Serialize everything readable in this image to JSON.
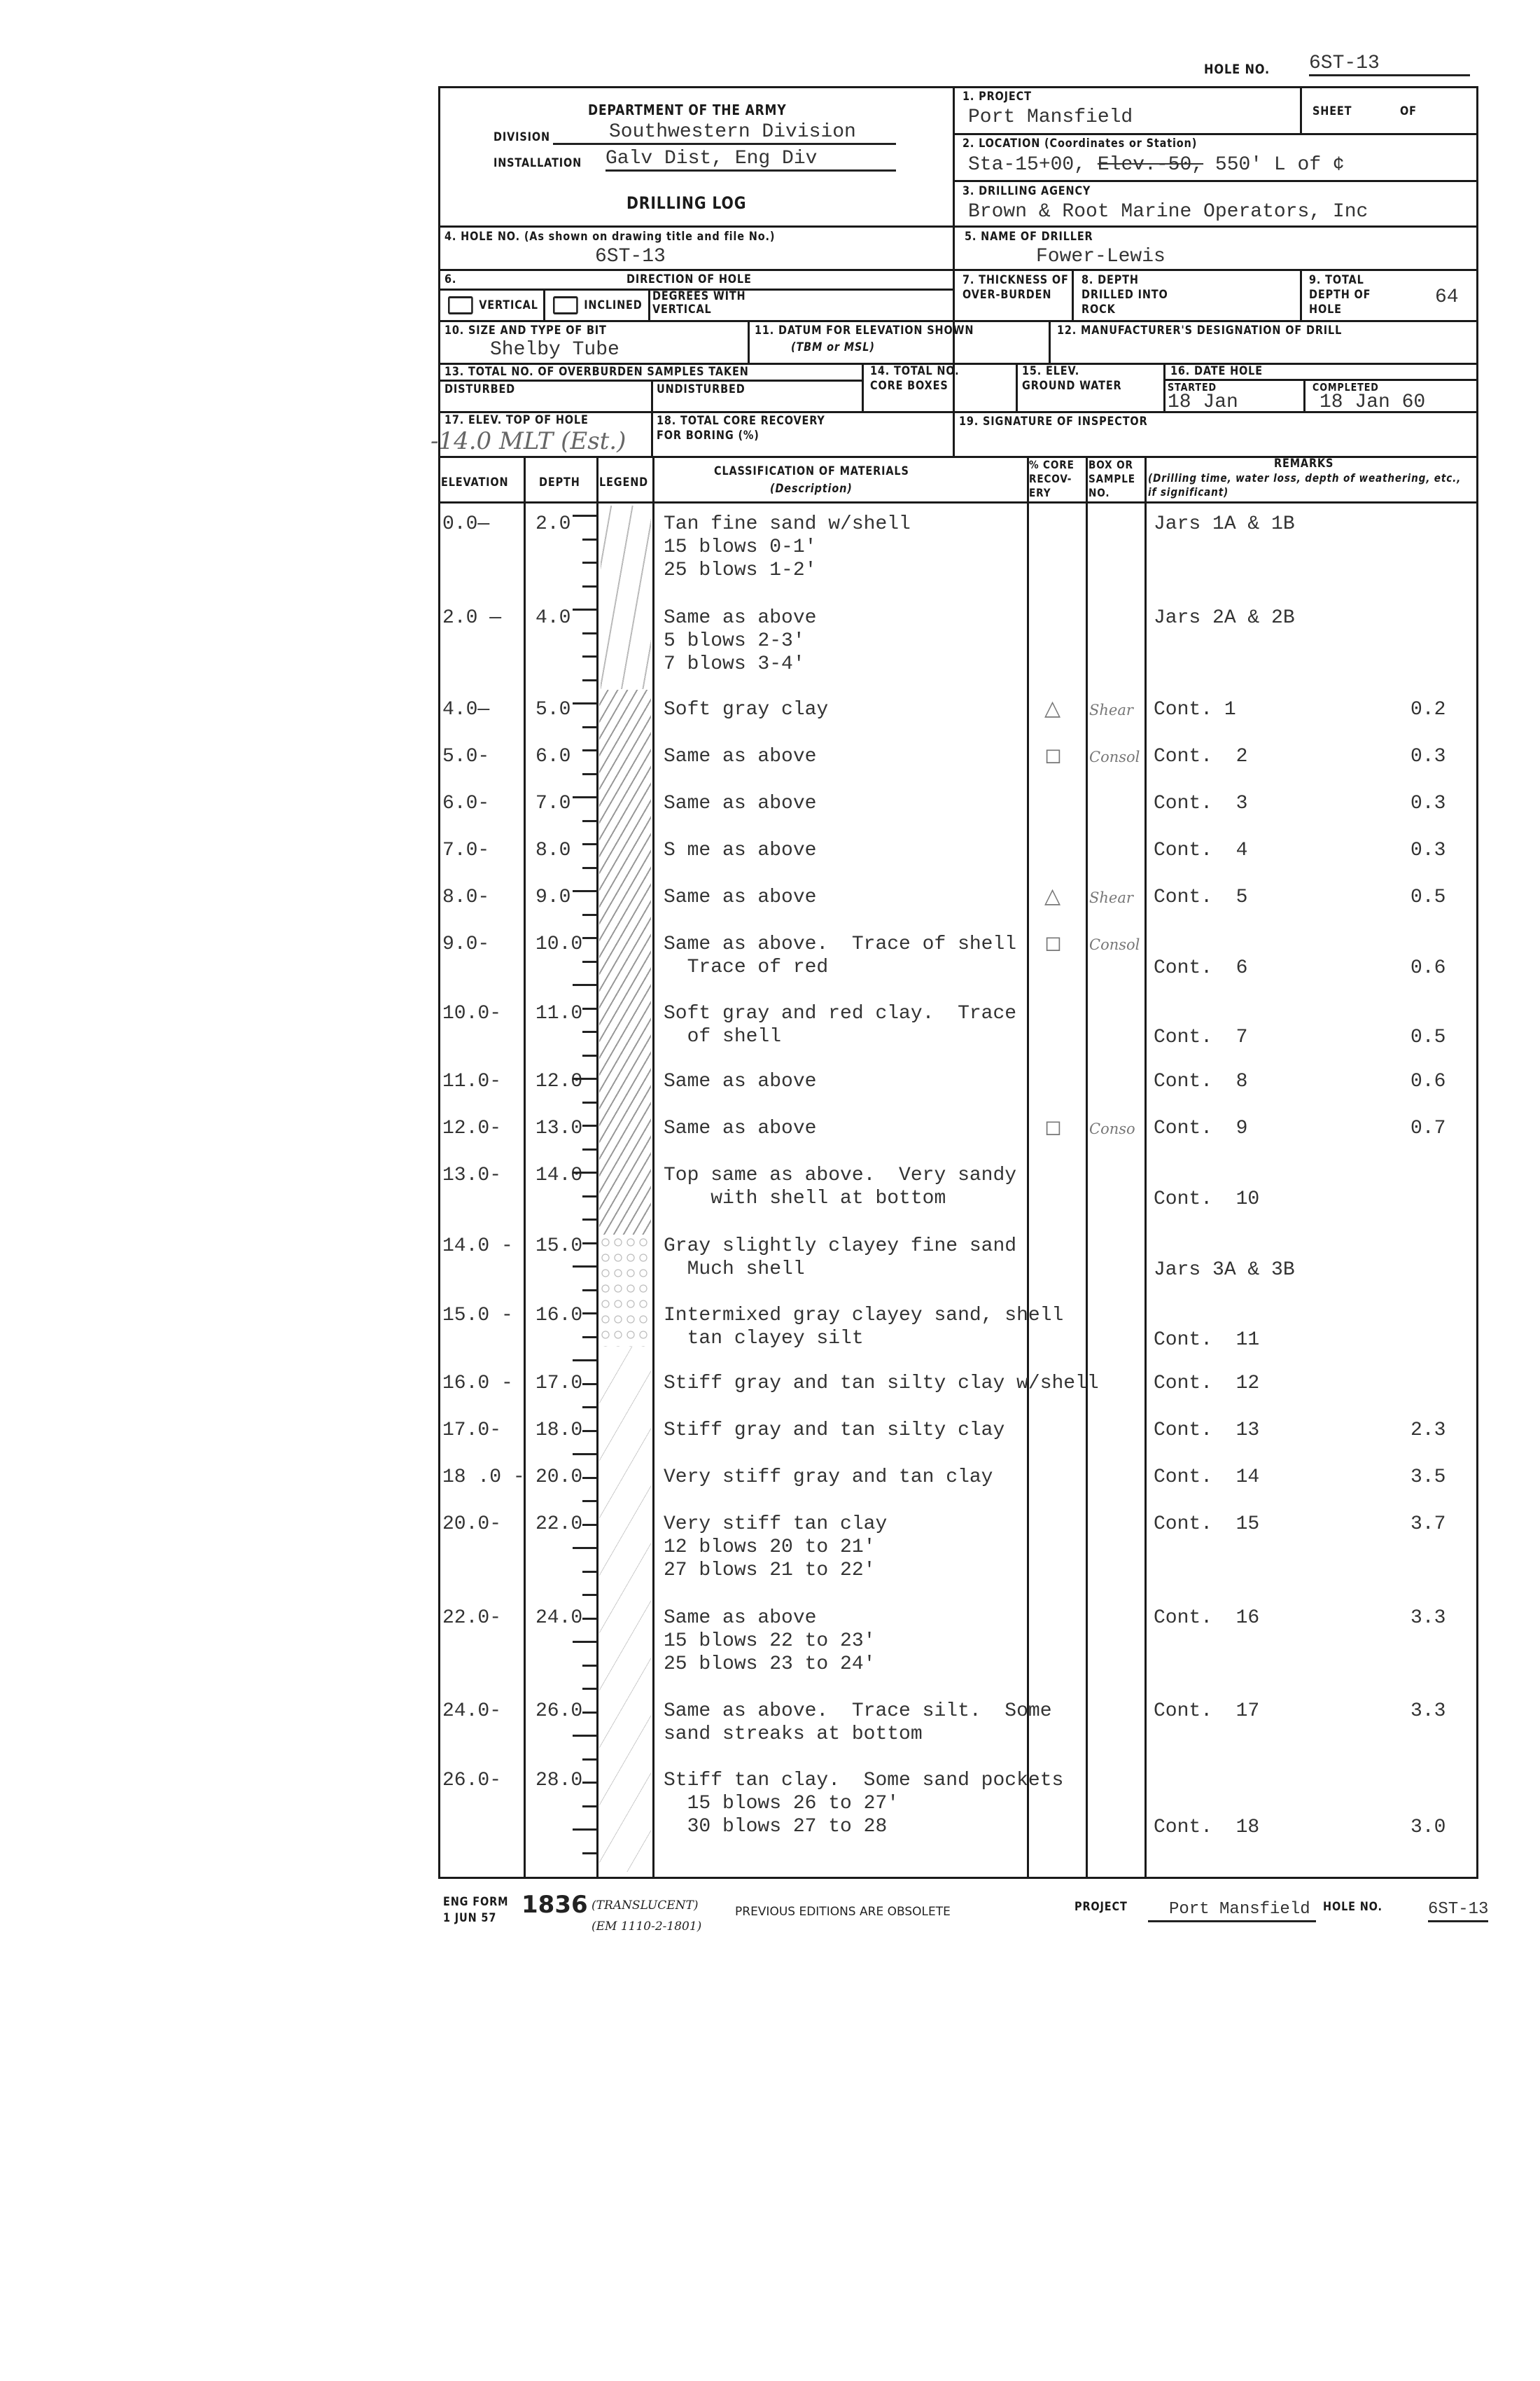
{
  "hole_no_top": {
    "label": "HOLE NO.",
    "value": "6ST-13"
  },
  "header": {
    "dept": "DEPARTMENT OF THE ARMY",
    "division_label": "DIVISION",
    "division": "Southwestern Division",
    "installation_label": "INSTALLATION",
    "installation": "Galv Dist, Eng Div",
    "title": "DRILLING LOG",
    "project_label": "1. PROJECT",
    "project": "Port Mansfield",
    "sheet_label": "SHEET",
    "of_label": "OF",
    "location_label": "2. LOCATION (Coordinates or Station)",
    "location_a": "Sta-15+00,",
    "location_struck": "Elev.-50,",
    "location_b": "550' L of ¢",
    "agency_label": "3. DRILLING AGENCY",
    "agency": "Brown & Root Marine Operators, Inc",
    "hole_label": "4. HOLE NO. (As shown on drawing title and file No.)",
    "hole": "6ST-13",
    "driller_label": "5. NAME OF DRILLER",
    "driller": "Fower-Lewis",
    "direction_num": "6.",
    "direction_label": "DIRECTION OF HOLE",
    "vertical": "VERTICAL",
    "inclined": "INCLINED",
    "degrees": "DEGREES WITH VERTICAL",
    "thickness_label": "7. THICKNESS OF OVER-BURDEN",
    "depth_rock_label": "8. DEPTH DRILLED INTO ROCK",
    "total_depth_label": "9. TOTAL DEPTH OF HOLE",
    "total_depth": "64",
    "bit_label": "10. SIZE AND TYPE OF BIT",
    "bit": "Shelby Tube",
    "datum_label": "11. DATUM FOR ELEVATION SHOWN",
    "datum_sub": "(TBM or MSL)",
    "manuf_label": "12. MANUFACTURER'S DESIGNATION OF DRILL",
    "samples_label": "13. TOTAL NO. OF OVERBURDEN SAMPLES TAKEN",
    "disturbed": "DISTURBED",
    "undisturbed": "UNDISTURBED",
    "core_boxes_label": "14. TOTAL NO. CORE BOXES",
    "ground_water_label": "15. ELEV. GROUND WATER",
    "date_label": "16. DATE HOLE",
    "started_label": "STARTED",
    "started": "18 Jan",
    "completed_label": "COMPLETED",
    "completed": "18 Jan 60",
    "elev_top_label": "17. ELEV. TOP OF HOLE",
    "elev_top": "-14.0 MLT (Est.)",
    "core_recovery_label": "18. TOTAL CORE RECOVERY FOR BORING (%)",
    "inspector_label": "19. SIGNATURE OF INSPECTOR"
  },
  "columns": {
    "elevation": "ELEVATION",
    "depth": "DEPTH",
    "legend": "LEGEND",
    "classification": "CLASSIFICATION OF MATERIALS",
    "classification_sub": "(Description)",
    "recovery": "% CORE RECOV-ERY",
    "box": "BOX OR SAMPLE NO.",
    "remarks": "REMARKS",
    "remarks_sub": "(Drilling time, water loss, depth of weathering, etc., if significant)"
  },
  "rows": [
    {
      "elev": "0.0—",
      "depth": "2.0",
      "desc": [
        "Tan fine sand w/shell",
        "15 blows 0-1'",
        "25 blows 1-2'"
      ],
      "mark": "",
      "sample": "",
      "remark": "Jars 1A & 1B",
      "value": ""
    },
    {
      "elev": "2.0 —",
      "depth": "4.0",
      "desc": [
        "Same as above",
        "5 blows 2-3'",
        "7 blows 3-4'"
      ],
      "mark": "",
      "sample": "",
      "remark": "Jars 2A & 2B",
      "value": ""
    },
    {
      "elev": "4.0—",
      "depth": "5.0",
      "desc": [
        "Soft gray clay"
      ],
      "mark": "△",
      "sample": "Shear",
      "remark": "Cont. 1",
      "value": "0.2"
    },
    {
      "elev": "5.0-",
      "depth": "6.0",
      "desc": [
        "Same as above"
      ],
      "mark": "◻",
      "sample": "Consol",
      "remark": "Cont.  2",
      "value": "0.3"
    },
    {
      "elev": "6.0-",
      "depth": "7.0",
      "desc": [
        "Same as above"
      ],
      "mark": "",
      "sample": "",
      "remark": "Cont.  3",
      "value": "0.3"
    },
    {
      "elev": "7.0-",
      "depth": "8.0",
      "desc": [
        "S me as above"
      ],
      "mark": "",
      "sample": "",
      "remark": "Cont.  4",
      "value": "0.3"
    },
    {
      "elev": "8.0-",
      "depth": "9.0",
      "desc": [
        "Same as above"
      ],
      "mark": "△",
      "sample": "Shear",
      "remark": "Cont.  5",
      "value": "0.5"
    },
    {
      "elev": "9.0-",
      "depth": "10.0",
      "desc": [
        "Same as above.  Trace of shell",
        "  Trace of red"
      ],
      "mark": "◻",
      "sample": "Consol",
      "remark": "Cont.  6",
      "value": "0.6"
    },
    {
      "elev": "10.0-",
      "depth": "11.0",
      "desc": [
        "Soft gray and red clay.  Trace",
        "  of shell"
      ],
      "mark": "",
      "sample": "",
      "remark": "Cont.  7",
      "value": "0.5"
    },
    {
      "elev": "11.0-",
      "depth": "12.0",
      "desc": [
        "Same as above"
      ],
      "mark": "",
      "sample": "",
      "remark": "Cont.  8",
      "value": "0.6"
    },
    {
      "elev": "12.0-",
      "depth": "13.0",
      "desc": [
        "Same as above"
      ],
      "mark": "◻",
      "sample": "Conso",
      "remark": "Cont.  9",
      "value": "0.7"
    },
    {
      "elev": "13.0-",
      "depth": "14.0",
      "desc": [
        "Top same as above.  Very sandy",
        "    with shell at bottom"
      ],
      "mark": "",
      "sample": "",
      "remark": "Cont.  10",
      "value": ""
    },
    {
      "elev": "14.0 -",
      "depth": "15.0",
      "desc": [
        "Gray slightly clayey fine sand",
        "  Much shell"
      ],
      "mark": "",
      "sample": "",
      "remark": "Jars 3A & 3B",
      "value": ""
    },
    {
      "elev": "15.0 -",
      "depth": "16.0",
      "desc": [
        "Intermixed gray clayey sand, shell",
        "  tan clayey silt"
      ],
      "mark": "",
      "sample": "",
      "remark": "Cont.  11",
      "value": ""
    },
    {
      "elev": "16.0 -",
      "depth": "17.0",
      "desc": [
        "Stiff gray and tan silty clay w/shell"
      ],
      "mark": "",
      "sample": "",
      "remark": "Cont.  12",
      "value": ""
    },
    {
      "elev": "17.0-",
      "depth": "18.0",
      "desc": [
        "Stiff gray and tan silty clay"
      ],
      "mark": "",
      "sample": "",
      "remark": "Cont.  13",
      "value": "2.3"
    },
    {
      "elev": "18 .0 -",
      "depth": "20.0",
      "desc": [
        "Very stiff gray and tan clay"
      ],
      "mark": "",
      "sample": "",
      "remark": "Cont.  14",
      "value": "3.5"
    },
    {
      "elev": "20.0-",
      "depth": "22.0",
      "desc": [
        "Very stiff tan clay",
        "12 blows 20 to 21'",
        "27 blows 21 to 22'"
      ],
      "mark": "",
      "sample": "",
      "remark": "Cont.  15",
      "value": "3.7"
    },
    {
      "elev": "22.0-",
      "depth": "24.0",
      "desc": [
        "Same as above",
        "15 blows 22 to 23'",
        "25 blows 23 to 24'"
      ],
      "mark": "",
      "sample": "",
      "remark": "Cont.  16",
      "value": "3.3"
    },
    {
      "elev": "24.0-",
      "depth": "26.0",
      "desc": [
        "Same as above.  Trace silt.  Some",
        "sand streaks at bottom"
      ],
      "mark": "",
      "sample": "",
      "remark": "Cont.  17",
      "value": "3.3"
    },
    {
      "elev": "26.0-",
      "depth": "28.0",
      "desc": [
        "Stiff tan clay.  Some sand pockets",
        "  15 blows 26 to 27'",
        "  30 blows 27 to 28"
      ],
      "mark": "",
      "sample": "",
      "remark": "Cont.  18",
      "value": "3.0"
    }
  ],
  "footer": {
    "form": "ENG FORM",
    "date": "1 JUN 57",
    "number": "1836",
    "translucent": "(TRANSLUCENT)",
    "em": "(EM 1110-2-1801)",
    "obsolete": "PREVIOUS EDITIONS ARE OBSOLETE",
    "project_label": "PROJECT",
    "project": "Port Mansfield",
    "hole_label": "HOLE NO.",
    "hole": "6ST-13"
  }
}
